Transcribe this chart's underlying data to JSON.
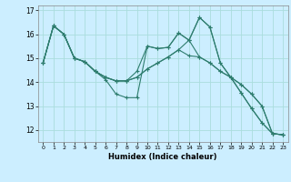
{
  "xlabel": "Humidex (Indice chaleur)",
  "background_color": "#cceeff",
  "grid_color": "#aadddd",
  "line_color": "#2e7d6e",
  "xlim": [
    -0.5,
    23.5
  ],
  "ylim": [
    11.5,
    17.2
  ],
  "yticks": [
    12,
    13,
    14,
    15,
    16,
    17
  ],
  "xticks": [
    0,
    1,
    2,
    3,
    4,
    5,
    6,
    7,
    8,
    9,
    10,
    11,
    12,
    13,
    14,
    15,
    16,
    17,
    18,
    19,
    20,
    21,
    22,
    23
  ],
  "lines": [
    [
      14.8,
      16.35,
      16.0,
      15.0,
      14.85,
      14.45,
      14.1,
      13.5,
      13.35,
      13.35,
      15.5,
      15.4,
      15.45,
      16.05,
      15.75,
      16.7,
      16.3,
      14.8,
      14.2,
      13.55,
      12.9,
      12.3,
      11.85,
      11.8
    ],
    [
      14.8,
      16.35,
      16.0,
      15.0,
      14.85,
      14.45,
      14.2,
      14.05,
      14.05,
      14.45,
      15.5,
      15.4,
      15.45,
      16.05,
      15.75,
      15.05,
      14.8,
      14.45,
      14.2,
      13.9,
      13.5,
      13.0,
      11.85,
      11.8
    ],
    [
      14.8,
      16.35,
      16.0,
      15.0,
      14.85,
      14.45,
      14.2,
      14.05,
      14.05,
      14.2,
      14.55,
      14.8,
      15.05,
      15.35,
      15.75,
      16.7,
      16.3,
      14.8,
      14.2,
      13.55,
      12.9,
      12.3,
      11.85,
      11.8
    ],
    [
      14.8,
      16.35,
      16.0,
      15.0,
      14.85,
      14.45,
      14.2,
      14.05,
      14.05,
      14.2,
      14.55,
      14.8,
      15.05,
      15.35,
      15.1,
      15.05,
      14.8,
      14.45,
      14.2,
      13.9,
      13.5,
      13.0,
      11.85,
      11.8
    ]
  ]
}
